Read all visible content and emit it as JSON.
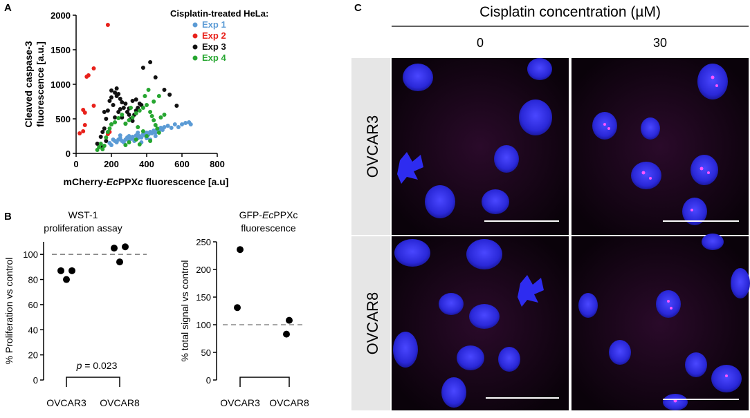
{
  "panel_letters": {
    "a": "A",
    "b": "B",
    "c": "C"
  },
  "chart_data": [
    {
      "id": "A",
      "type": "scatter",
      "title": "",
      "xlabel_parts": [
        "mCherry-",
        "Ec",
        "PPX",
        "c",
        " fluorescence [a.u]"
      ],
      "ylabel_lines": [
        "Cleaved caspase-3",
        "fluorescence [a.u.]"
      ],
      "xlim": [
        0,
        800
      ],
      "ylim": [
        0,
        2000
      ],
      "xticks": [
        "0",
        "200",
        "400",
        "600",
        "800"
      ],
      "yticks": [
        "0",
        "500",
        "1000",
        "1500",
        "2000"
      ],
      "legend_title": "Cisplatin-treated HeLa:",
      "legend_placement": "top-right",
      "series": [
        {
          "name": "Exp 1",
          "color": "#5b9bd5",
          "points": [
            [
              190,
              150
            ],
            [
              200,
              120
            ],
            [
              210,
              200
            ],
            [
              220,
              180
            ],
            [
              230,
              160
            ],
            [
              240,
              200
            ],
            [
              250,
              220
            ],
            [
              260,
              180
            ],
            [
              270,
              160
            ],
            [
              280,
              200
            ],
            [
              290,
              230
            ],
            [
              300,
              190
            ],
            [
              310,
              210
            ],
            [
              320,
              240
            ],
            [
              330,
              200
            ],
            [
              340,
              260
            ],
            [
              350,
              220
            ],
            [
              360,
              250
            ],
            [
              370,
              230
            ],
            [
              380,
              280
            ],
            [
              390,
              260
            ],
            [
              400,
              300
            ],
            [
              410,
              270
            ],
            [
              420,
              310
            ],
            [
              430,
              290
            ],
            [
              440,
              330
            ],
            [
              450,
              300
            ],
            [
              460,
              350
            ],
            [
              470,
              330
            ],
            [
              480,
              370
            ],
            [
              490,
              340
            ],
            [
              500,
              380
            ],
            [
              520,
              400
            ],
            [
              540,
              370
            ],
            [
              560,
              420
            ],
            [
              580,
              380
            ],
            [
              600,
              420
            ],
            [
              620,
              440
            ],
            [
              640,
              450
            ],
            [
              650,
              420
            ],
            [
              250,
              260
            ],
            [
              300,
              250
            ],
            [
              350,
              300
            ],
            [
              400,
              220
            ],
            [
              450,
              250
            ],
            [
              330,
              180
            ],
            [
              370,
              160
            ],
            [
              420,
              200
            ]
          ]
        },
        {
          "name": "Exp 2",
          "color": "#e8211b",
          "points": [
            [
              70,
              1130
            ],
            [
              60,
              1110
            ],
            [
              100,
              1230
            ],
            [
              40,
              630
            ],
            [
              50,
              590
            ],
            [
              100,
              690
            ],
            [
              20,
              290
            ],
            [
              40,
              320
            ],
            [
              50,
              410
            ],
            [
              180,
              280
            ],
            [
              190,
              310
            ],
            [
              180,
              1860
            ]
          ]
        },
        {
          "name": "Exp 3",
          "color": "#111111",
          "points": [
            [
              120,
              140
            ],
            [
              140,
              240
            ],
            [
              150,
              310
            ],
            [
              160,
              360
            ],
            [
              170,
              500
            ],
            [
              180,
              620
            ],
            [
              190,
              760
            ],
            [
              200,
              810
            ],
            [
              210,
              700
            ],
            [
              220,
              880
            ],
            [
              230,
              940
            ],
            [
              240,
              860
            ],
            [
              250,
              790
            ],
            [
              260,
              740
            ],
            [
              270,
              660
            ],
            [
              280,
              720
            ],
            [
              290,
              600
            ],
            [
              300,
              560
            ],
            [
              310,
              500
            ],
            [
              320,
              470
            ],
            [
              330,
              560
            ],
            [
              340,
              620
            ],
            [
              350,
              660
            ],
            [
              360,
              720
            ],
            [
              370,
              700
            ],
            [
              380,
              1240
            ],
            [
              420,
              1320
            ],
            [
              450,
              1100
            ],
            [
              500,
              920
            ],
            [
              530,
              850
            ],
            [
              570,
              690
            ],
            [
              150,
              90
            ],
            [
              170,
              180
            ],
            [
              200,
              420
            ],
            [
              220,
              520
            ],
            [
              240,
              600
            ],
            [
              260,
              520
            ],
            [
              280,
              430
            ],
            [
              300,
              650
            ],
            [
              320,
              760
            ],
            [
              340,
              780
            ],
            [
              200,
              910
            ],
            [
              230,
              830
            ],
            [
              160,
              600
            ],
            [
              250,
              640
            ]
          ]
        },
        {
          "name": "Exp 4",
          "color": "#26a630",
          "points": [
            [
              120,
              50
            ],
            [
              130,
              90
            ],
            [
              140,
              140
            ],
            [
              150,
              60
            ],
            [
              160,
              110
            ],
            [
              170,
              230
            ],
            [
              180,
              310
            ],
            [
              190,
              360
            ],
            [
              200,
              420
            ],
            [
              220,
              450
            ],
            [
              240,
              510
            ],
            [
              260,
              560
            ],
            [
              280,
              430
            ],
            [
              300,
              480
            ],
            [
              320,
              520
            ],
            [
              340,
              580
            ],
            [
              360,
              620
            ],
            [
              380,
              660
            ],
            [
              400,
              700
            ],
            [
              410,
              920
            ],
            [
              420,
              600
            ],
            [
              430,
              540
            ],
            [
              440,
              480
            ],
            [
              450,
              410
            ],
            [
              460,
              360
            ],
            [
              470,
              300
            ],
            [
              480,
              520
            ],
            [
              500,
              560
            ],
            [
              350,
              380
            ],
            [
              380,
              320
            ],
            [
              400,
              250
            ],
            [
              340,
              200
            ],
            [
              300,
              160
            ],
            [
              280,
              120
            ],
            [
              360,
              130
            ],
            [
              420,
              180
            ],
            [
              440,
              750
            ],
            [
              470,
              830
            ],
            [
              390,
              830
            ],
            [
              310,
              660
            ]
          ]
        }
      ]
    },
    {
      "id": "B1",
      "type": "scatter",
      "title_lines": [
        "WST-1",
        "proliferation assay"
      ],
      "ylabel": "% Proliferation vs control",
      "ylim": [
        0,
        110
      ],
      "yticks": [
        "0",
        "20",
        "40",
        "60",
        "80",
        "100"
      ],
      "categories": [
        "OVCAR3",
        "OVCAR8"
      ],
      "reference_line": 100,
      "values": [
        [
          87,
          87,
          80
        ],
        [
          105,
          106,
          94
        ]
      ],
      "annotation_p": "p",
      "annotation_rest": " = 0.023",
      "color": "#000000"
    },
    {
      "id": "B2",
      "type": "scatter",
      "title_lines": [
        "GFP-",
        "Ec",
        "PPXc",
        "fluorescence"
      ],
      "ylabel": "% total signal vs control",
      "ylim": [
        0,
        250
      ],
      "yticks": [
        "0",
        "50",
        "100",
        "150",
        "200",
        "250"
      ],
      "categories": [
        "OVCAR3",
        "OVCAR8"
      ],
      "reference_line": 100,
      "values": [
        [
          236,
          131
        ],
        [
          108,
          83
        ]
      ],
      "color": "#000000"
    }
  ],
  "micrographs": {
    "title": "Cisplatin concentration (",
    "title_unit": "µM",
    "title_close": ")",
    "columns": [
      "0",
      "30"
    ],
    "rows": [
      "OVCAR3",
      "OVCAR8"
    ]
  }
}
